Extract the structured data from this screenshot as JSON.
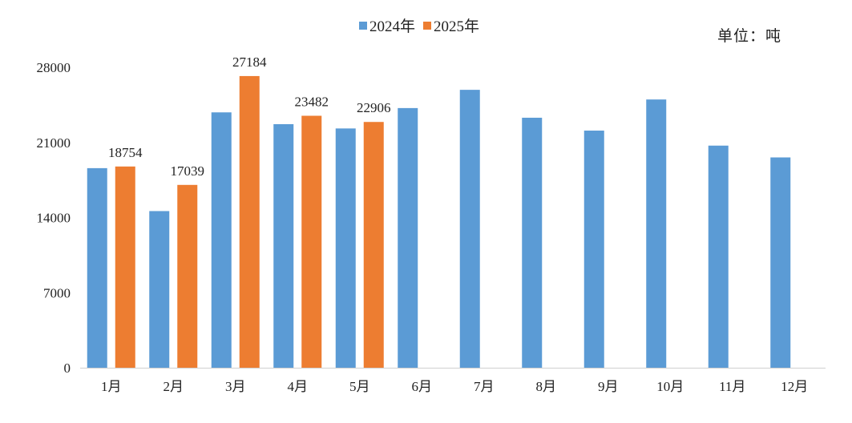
{
  "chart_data": {
    "type": "bar",
    "unit_label": "单位：吨",
    "categories": [
      "1月",
      "2月",
      "3月",
      "4月",
      "5月",
      "6月",
      "7月",
      "8月",
      "9月",
      "10月",
      "11月",
      "12月"
    ],
    "ylim": [
      0,
      28000
    ],
    "yticks": [
      0,
      7000,
      14000,
      21000,
      28000
    ],
    "ytick_labels": [
      "0",
      "7000",
      "14000",
      "21000",
      "28000"
    ],
    "grid": false,
    "legend_position": "top-center",
    "series": [
      {
        "name": "2024年",
        "color": "#5B9BD5",
        "values": [
          18600,
          14600,
          23800,
          22700,
          22300,
          24200,
          25900,
          23300,
          22100,
          25000,
          20700,
          19600
        ]
      },
      {
        "name": "2025年",
        "color": "#ED7D31",
        "values": [
          18754,
          17039,
          27184,
          23482,
          22906,
          null,
          null,
          null,
          null,
          null,
          null,
          null
        ],
        "data_labels": [
          "18754",
          "17039",
          "27184",
          "23482",
          "22906"
        ]
      }
    ]
  }
}
